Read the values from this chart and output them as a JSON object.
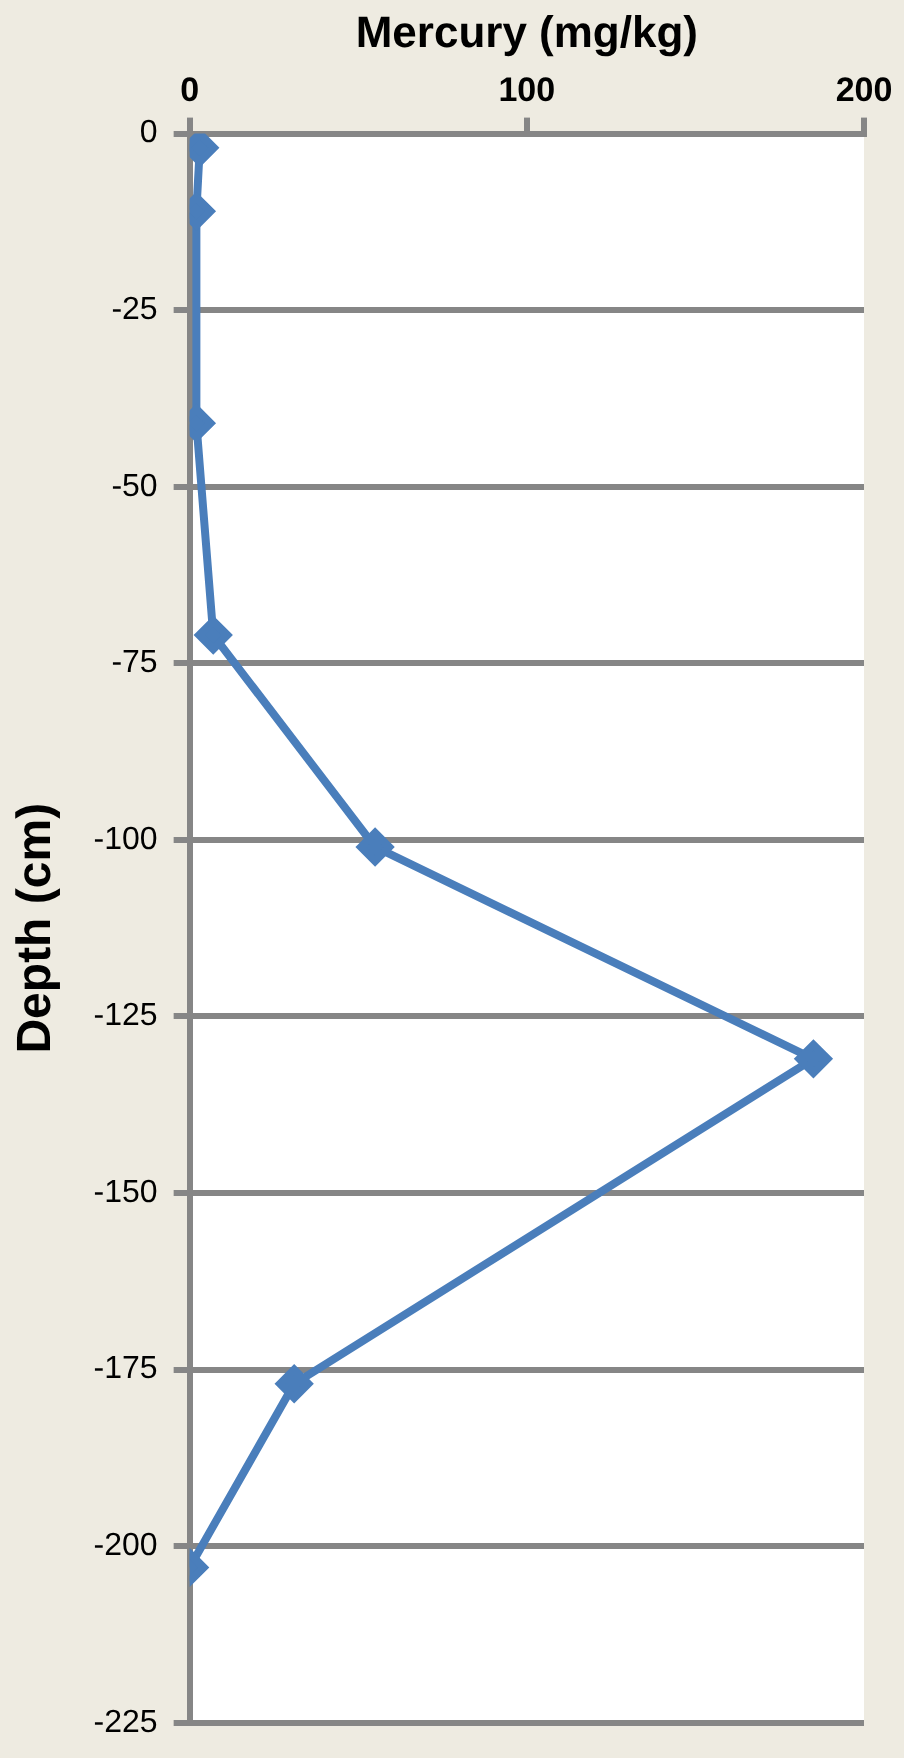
{
  "chart_data": {
    "type": "line",
    "xlabel": "Mercury (mg/kg)",
    "ylabel": "Depth (cm)",
    "x": [
      3,
      2,
      2,
      7,
      55,
      185,
      31,
      0
    ],
    "values": [
      -2,
      -11,
      -41,
      -71,
      -101,
      -131,
      -177,
      -203
    ],
    "color": "#4a7ebb",
    "marker": "diamond",
    "line_style": "solid",
    "xlim": [
      0,
      200
    ],
    "xticks": [
      0,
      100,
      200
    ],
    "ylim": [
      -225,
      0
    ],
    "yticks": [
      0,
      -25,
      -50,
      -75,
      -100,
      -125,
      -150,
      -175,
      -200,
      -225
    ],
    "grid": "y",
    "legend": false
  }
}
